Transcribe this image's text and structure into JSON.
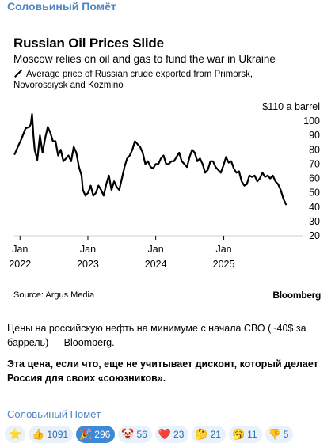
{
  "channel_name": "Соловьиный Помёт",
  "chart": {
    "title": "Russian Oil Prices Slide",
    "subtitle": "Moscow relies on oil and gas to fund the war in Ukraine",
    "legend_label": "Average price of Russian crude exported from Primorsk, Novorossiysk and Kozmino",
    "source": "Source: Argus Media",
    "logo": "Bloomberg"
  },
  "chart_data": {
    "type": "line",
    "title": "Russian Oil Prices Slide",
    "subtitle": "Moscow relies on oil and gas to fund the war in Ukraine",
    "xlabel": "",
    "ylabel": "",
    "unit_label": "$110 a barrel",
    "ylim": [
      20,
      110
    ],
    "yticks": [
      20,
      30,
      40,
      50,
      60,
      70,
      80,
      90,
      100
    ],
    "xlim": [
      "2021-12-01",
      "2025-12-31"
    ],
    "xticks": [
      {
        "date": "2022-01-01",
        "label1": "Jan",
        "label2": "2022"
      },
      {
        "date": "2023-01-01",
        "label1": "Jan",
        "label2": "2023"
      },
      {
        "date": "2024-01-01",
        "label1": "Jan",
        "label2": "2024"
      },
      {
        "date": "2025-01-01",
        "label1": "Jan",
        "label2": "2025"
      }
    ],
    "grid": false,
    "series": [
      {
        "name": "Average price of Russian crude exported from Primorsk, Novorossiysk and Kozmino",
        "x": [
          "2021-12-03",
          "2021-12-20",
          "2022-01-10",
          "2022-01-31",
          "2022-02-21",
          "2022-02-28",
          "2022-03-07",
          "2022-03-14",
          "2022-03-21",
          "2022-04-04",
          "2022-04-18",
          "2022-05-02",
          "2022-05-16",
          "2022-05-30",
          "2022-06-13",
          "2022-06-27",
          "2022-07-11",
          "2022-07-25",
          "2022-08-08",
          "2022-08-22",
          "2022-09-05",
          "2022-09-19",
          "2022-10-03",
          "2022-10-17",
          "2022-10-31",
          "2022-11-14",
          "2022-11-28",
          "2022-12-05",
          "2022-12-19",
          "2023-01-02",
          "2023-01-16",
          "2023-01-30",
          "2023-02-13",
          "2023-02-27",
          "2023-03-13",
          "2023-03-27",
          "2023-04-10",
          "2023-04-24",
          "2023-05-08",
          "2023-05-22",
          "2023-06-05",
          "2023-06-19",
          "2023-07-03",
          "2023-07-17",
          "2023-07-31",
          "2023-08-14",
          "2023-08-28",
          "2023-09-11",
          "2023-09-25",
          "2023-10-09",
          "2023-10-23",
          "2023-11-06",
          "2023-11-20",
          "2023-12-04",
          "2023-12-18",
          "2024-01-01",
          "2024-01-15",
          "2024-01-29",
          "2024-02-12",
          "2024-02-26",
          "2024-03-11",
          "2024-03-25",
          "2024-04-08",
          "2024-04-22",
          "2024-05-06",
          "2024-05-20",
          "2024-06-03",
          "2024-06-17",
          "2024-07-01",
          "2024-07-15",
          "2024-07-29",
          "2024-08-12",
          "2024-08-26",
          "2024-09-09",
          "2024-09-23",
          "2024-10-07",
          "2024-10-21",
          "2024-11-04",
          "2024-11-18",
          "2024-12-02",
          "2024-12-16",
          "2024-12-30",
          "2025-01-13",
          "2025-01-27",
          "2025-02-10",
          "2025-02-24",
          "2025-03-10",
          "2025-03-24",
          "2025-04-07",
          "2025-04-21",
          "2025-05-05",
          "2025-05-19",
          "2025-06-02",
          "2025-06-16",
          "2025-06-30",
          "2025-07-14",
          "2025-07-28",
          "2025-08-11",
          "2025-08-25",
          "2025-09-08",
          "2025-09-22",
          "2025-10-06",
          "2025-10-20",
          "2025-11-03",
          "2025-11-17",
          "2025-12-01"
        ],
        "y": [
          77,
          82,
          88,
          95,
          96,
          98,
          105,
          90,
          80,
          73,
          90,
          78,
          88,
          96,
          92,
          86,
          86,
          76,
          80,
          72,
          74,
          76,
          72,
          82,
          78,
          68,
          62,
          52,
          48,
          50,
          55,
          48,
          50,
          55,
          52,
          48,
          56,
          62,
          52,
          58,
          54,
          52,
          60,
          68,
          74,
          76,
          80,
          86,
          84,
          82,
          78,
          70,
          72,
          68,
          67,
          70,
          70,
          74,
          76,
          70,
          70,
          72,
          72,
          75,
          78,
          72,
          70,
          68,
          75,
          80,
          78,
          72,
          74,
          70,
          64,
          66,
          72,
          72,
          68,
          66,
          64,
          69,
          75,
          71,
          72,
          67,
          64,
          65,
          58,
          55,
          56,
          62,
          61,
          62,
          58,
          60,
          64,
          61,
          62,
          60,
          62,
          58,
          56,
          52,
          46,
          42
        ]
      }
    ]
  },
  "message": {
    "line1": "Цены на российскую нефть на минимуме с начала СВО (~40$ за баррель) — Bloomberg.",
    "line2": "Эта цена, если что, еще не учитывает дисконт, который делает Россия для своих «союзников»."
  },
  "reactions": [
    {
      "emoji": "⭐",
      "count": ""
    },
    {
      "emoji": "👍",
      "count": "1091"
    },
    {
      "emoji": "🎉",
      "count": "296",
      "active": true
    },
    {
      "emoji": "🤡",
      "count": "56"
    },
    {
      "emoji": "❤️",
      "count": "23"
    },
    {
      "emoji": "🤔",
      "count": "21"
    },
    {
      "emoji": "🥱",
      "count": "11"
    },
    {
      "emoji": "👎",
      "count": "5"
    }
  ],
  "colors": {
    "channel": "#4d86c2",
    "reaction_bg": "#e9f1fa",
    "reaction_active": "#3e88d6",
    "line": "#000000"
  }
}
